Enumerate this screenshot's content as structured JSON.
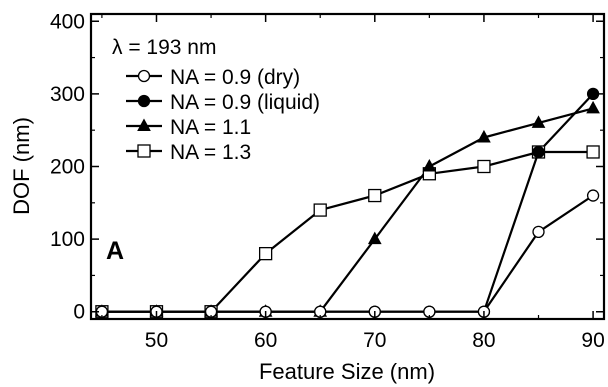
{
  "chart_data": {
    "type": "line",
    "title": "",
    "xlabel": "Feature Size (nm)",
    "ylabel": "DOF (nm)",
    "xlim": [
      44,
      91
    ],
    "ylim": [
      -10,
      410
    ],
    "x_ticks": [
      50,
      60,
      70,
      80,
      90
    ],
    "y_ticks": [
      0,
      100,
      200,
      300,
      400
    ],
    "grid": false,
    "legend_placement": "top-left",
    "legend_title": "λ = 193  nm",
    "panel_label": "A",
    "series": [
      {
        "name": "NA = 0.9 (dry)",
        "marker": "open-circle",
        "x": [
          45,
          50,
          55,
          60,
          65,
          70,
          75,
          80,
          85,
          90
        ],
        "y": [
          0,
          0,
          0,
          0,
          0,
          0,
          0,
          0,
          110,
          160
        ]
      },
      {
        "name": "NA = 0.9 (liquid)",
        "marker": "filled-circle",
        "x": [
          45,
          50,
          55,
          60,
          65,
          70,
          75,
          80,
          85,
          90
        ],
        "y": [
          0,
          0,
          0,
          0,
          0,
          0,
          0,
          0,
          220,
          300
        ]
      },
      {
        "name": "NA = 1.1",
        "marker": "filled-triangle",
        "x": [
          45,
          50,
          55,
          60,
          65,
          70,
          75,
          80,
          85,
          90
        ],
        "y": [
          0,
          0,
          0,
          0,
          0,
          100,
          200,
          240,
          260,
          280
        ]
      },
      {
        "name": "NA = 1.3",
        "marker": "open-square",
        "x": [
          45,
          50,
          55,
          60,
          65,
          70,
          75,
          80,
          85,
          90
        ],
        "y": [
          0,
          0,
          0,
          80,
          140,
          160,
          190,
          200,
          220,
          220
        ]
      }
    ],
    "colors": {
      "line": "#000000",
      "marker_fill_open": "#ffffff",
      "marker_fill_solid": "#000000"
    }
  }
}
